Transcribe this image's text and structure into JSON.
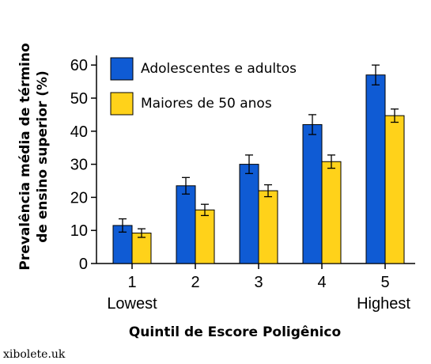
{
  "chart_data": {
    "type": "bar",
    "categories": [
      "1",
      "2",
      "3",
      "4",
      "5"
    ],
    "category_sublabels": [
      "Lowest",
      "",
      "",
      "",
      "Highest"
    ],
    "series": [
      {
        "name": "Adolescentes e adultos",
        "color": "#0f5bd4",
        "values": [
          11.5,
          23.5,
          30,
          42,
          57
        ],
        "errors": [
          2,
          2.5,
          2.8,
          3,
          3
        ]
      },
      {
        "name": "Maiores de 50 anos",
        "color": "#ffd21a",
        "values": [
          9.2,
          16.2,
          22,
          30.8,
          44.7
        ],
        "errors": [
          1.3,
          1.7,
          1.8,
          2,
          2
        ]
      }
    ],
    "xlabel": "Quintil de Escore Poligênico",
    "ylabel_lines": [
      "Prevalência média de término",
      "de ensino superior (%)"
    ],
    "ylim": [
      0,
      62
    ],
    "yticks": [
      0,
      10,
      20,
      30,
      40,
      50,
      60
    ],
    "legend": "top-left",
    "grid": false
  },
  "watermark": "xibolete.uk"
}
